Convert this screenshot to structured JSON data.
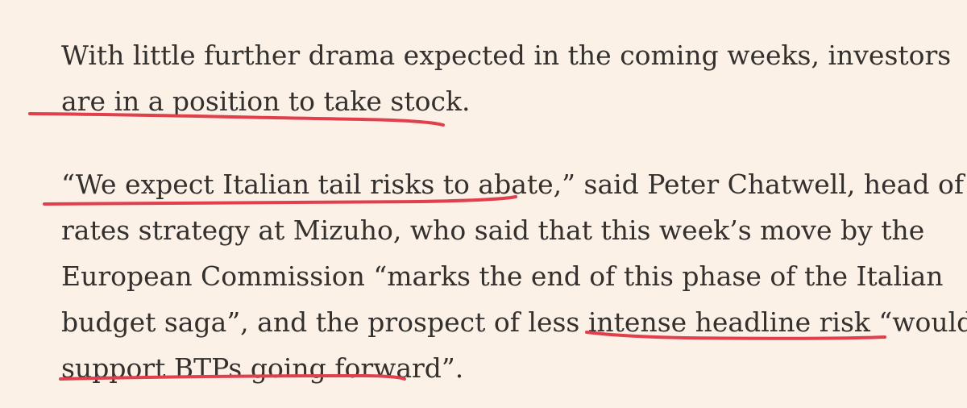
{
  "paragraph_1": {
    "lines": [
      "With little further drama expected in the coming weeks, investors",
      "are in a position to take stock."
    ]
  },
  "paragraph_2": {
    "lines": [
      "“We expect Italian tail risks to abate,” said Peter Chatwell, head of",
      "rates strategy at Mizuho, who said that this week’s move by the",
      "European Commission “marks the end of this phase of the Italian",
      "budget saga”, and the prospect of less intense headline risk “would",
      "support BTPs going forward”."
    ]
  },
  "annotation_color": "#e0404c"
}
